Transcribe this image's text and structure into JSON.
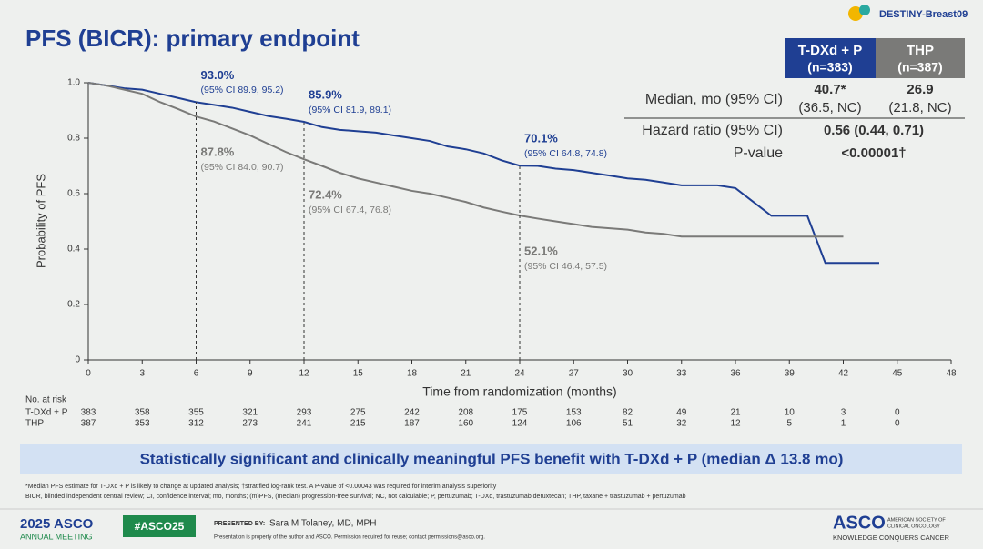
{
  "header": {
    "title": "PFS (BICR): primary endpoint",
    "trial": "DESTINY-Breast09"
  },
  "chart_data": {
    "type": "line",
    "x_label": "Time from randomization (months)",
    "y_label": "Probability of PFS",
    "x": [
      0,
      1,
      2,
      3,
      4,
      5,
      6,
      7,
      8,
      9,
      10,
      11,
      12,
      13,
      14,
      15,
      16,
      17,
      18,
      19,
      20,
      21,
      22,
      23,
      24,
      25,
      26,
      27,
      28,
      29,
      30,
      31,
      32,
      33,
      34,
      35,
      36,
      37,
      38,
      39,
      40,
      41,
      42,
      43,
      44
    ],
    "series": [
      {
        "name": "T-DXd + P",
        "color": "#1f3f93",
        "values": [
          1,
          0.99,
          0.98,
          0.975,
          0.96,
          0.945,
          0.93,
          0.92,
          0.91,
          0.895,
          0.88,
          0.87,
          0.859,
          0.84,
          0.83,
          0.825,
          0.82,
          0.81,
          0.8,
          0.79,
          0.77,
          0.76,
          0.745,
          0.72,
          0.701,
          0.7,
          0.69,
          0.685,
          0.675,
          0.665,
          0.655,
          0.65,
          0.64,
          0.63,
          0.63,
          0.63,
          0.62,
          0.57,
          0.52,
          0.52,
          0.52,
          0.35,
          0.35,
          0.35,
          0.35
        ],
        "annotations": [
          {
            "x": 6,
            "label": "93.0%",
            "ci": "(95% CI 89.9, 95.2)"
          },
          {
            "x": 12,
            "label": "85.9%",
            "ci": "(95% CI 81.9, 89.1)"
          },
          {
            "x": 24,
            "label": "70.1%",
            "ci": "(95% CI 64.8, 74.8)"
          }
        ]
      },
      {
        "name": "THP",
        "color": "#7a7a78",
        "values": [
          1,
          0.99,
          0.975,
          0.96,
          0.93,
          0.905,
          0.878,
          0.86,
          0.835,
          0.81,
          0.78,
          0.75,
          0.724,
          0.7,
          0.675,
          0.655,
          0.64,
          0.625,
          0.61,
          0.6,
          0.585,
          0.57,
          0.55,
          0.535,
          0.521,
          0.51,
          0.5,
          0.49,
          0.48,
          0.475,
          0.47,
          0.46,
          0.455,
          0.445,
          0.445,
          0.445,
          0.445,
          0.445,
          0.445,
          0.445,
          0.445,
          0.445,
          0.445,
          null,
          null
        ],
        "annotations": [
          {
            "x": 6,
            "label": "87.8%",
            "ci": "(95% CI 84.0, 90.7)"
          },
          {
            "x": 12,
            "label": "72.4%",
            "ci": "(95% CI 67.4, 76.8)"
          },
          {
            "x": 24,
            "label": "52.1%",
            "ci": "(95% CI 46.4, 57.5)"
          }
        ]
      }
    ],
    "xlim": [
      0,
      48
    ],
    "xticks": [
      0,
      3,
      6,
      9,
      12,
      15,
      18,
      21,
      24,
      27,
      30,
      33,
      36,
      39,
      42,
      45,
      48
    ],
    "ylim": [
      0,
      1
    ],
    "yticks": [
      0,
      0.2,
      0.4,
      0.6,
      0.8,
      {
        "value": 1,
        "label": "1.0"
      }
    ],
    "risk_table": {
      "title": "No. at risk",
      "rows": [
        [
          383,
          358,
          355,
          321,
          293,
          275,
          242,
          208,
          175,
          153,
          82,
          49,
          21,
          10,
          3,
          0
        ],
        [
          387,
          353,
          312,
          273,
          241,
          215,
          187,
          160,
          124,
          106,
          51,
          32,
          12,
          5,
          1,
          0
        ]
      ]
    }
  },
  "stats_table": {
    "columns": [
      {
        "name": "T-DXd + P",
        "n": "(n=383)"
      },
      {
        "name": "THP",
        "n": "(n=387)"
      }
    ],
    "median": {
      "label": "Median, mo (95% CI)",
      "cells": [
        [
          "40.7*",
          "(36.5, NC)"
        ],
        [
          "26.9",
          "(21.8, NC)"
        ]
      ]
    },
    "hazard": {
      "label": "Hazard ratio (95% CI)",
      "value": "0.56 (0.44, 0.71)"
    },
    "pvalue": {
      "label": "P-value",
      "value": "<0.00001†"
    }
  },
  "banner": "Statistically significant and clinically meaningful PFS benefit with T-DXd + P (median Δ 13.8 mo)",
  "footnotes": [
    "*Median PFS estimate for T-DXd + P is likely to change at updated analysis; †stratified log-rank test. A P-value of <0.00043 was required for interim analysis superiority",
    "BICR, blinded independent central review; CI, confidence interval; mo, months; (m)PFS, (median) progression-free survival; NC, not calculable; P, pertuzumab; T-DXd, trastuzumab deruxtecan; THP, taxane + trastuzumab + pertuzumab"
  ],
  "footer": {
    "meeting_year": "2025 ASCO",
    "meeting": "ANNUAL MEETING",
    "hashtag": "#ASCO25",
    "presented_by": "PRESENTED BY:",
    "presenter": "Sara M Tolaney, MD, MPH",
    "notice": "Presentation is property of the author and ASCO. Permission required for reuse; contact permissions@asco.org.",
    "org": "ASCO",
    "org_full_1": "AMERICAN SOCIETY OF",
    "org_full_2": "CLINICAL ONCOLOGY",
    "motto": "KNOWLEDGE CONQUERS CANCER"
  }
}
